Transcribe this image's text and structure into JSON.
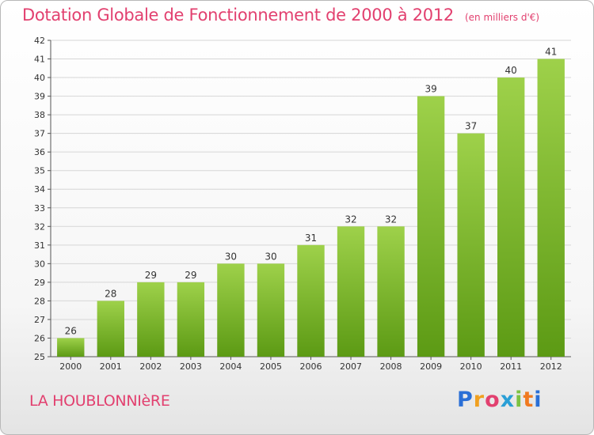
{
  "header": {
    "title": "Dotation Globale de Fonctionnement de 2000 à 2012",
    "unit": "(en milliers d'€)"
  },
  "footer": {
    "commune": "LA HOUBLONNIèRE",
    "logo": "Proxiti"
  },
  "colors": {
    "title": "#e2406f",
    "bar_light": "#9ed14a",
    "bar_dark": "#5c9a14",
    "grid": "#d6d6d6"
  },
  "chart_data": {
    "type": "bar",
    "categories": [
      "2000",
      "2001",
      "2002",
      "2003",
      "2004",
      "2005",
      "2006",
      "2007",
      "2008",
      "2009",
      "2010",
      "2011",
      "2012"
    ],
    "values": [
      26,
      28,
      29,
      29,
      30,
      30,
      31,
      32,
      32,
      39,
      37,
      40,
      41
    ],
    "ylim": [
      25,
      42
    ],
    "yticks": [
      25,
      26,
      27,
      28,
      29,
      30,
      31,
      32,
      33,
      34,
      35,
      36,
      37,
      38,
      39,
      40,
      41,
      42
    ],
    "grid": "horizontal"
  }
}
